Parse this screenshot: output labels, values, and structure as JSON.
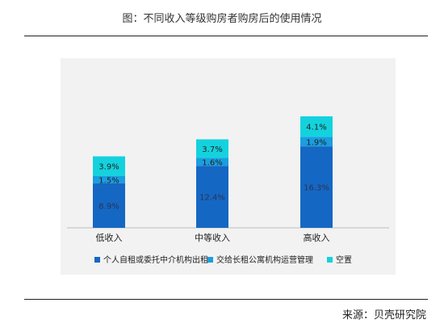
{
  "header": {
    "title": "图：不同收入等级购房者购房后的使用情况"
  },
  "footer": {
    "source": "来源：贝壳研究院"
  },
  "colors": {
    "series1": "#1567c4",
    "series2": "#1a9ee0",
    "series3": "#13d2de",
    "panel": "#f2f2f2",
    "label_dark": "#2a3550"
  },
  "chart_data": {
    "type": "bar",
    "stacked": true,
    "title": "图：不同收入等级购房者购房后的使用情况",
    "categories": [
      "低收入",
      "中等收入",
      "高收入"
    ],
    "series": [
      {
        "name": "个人自租或委托中介机构出租",
        "values": [
          8.9,
          12.4,
          16.3
        ],
        "labels": [
          "8.9%",
          "12.4%",
          "16.3%"
        ]
      },
      {
        "name": "交给长租公寓机构运营管理",
        "values": [
          1.5,
          1.6,
          1.9
        ],
        "labels": [
          "1.5%",
          "1.6%",
          "1.9%"
        ]
      },
      {
        "name": "空置",
        "values": [
          3.9,
          3.7,
          4.1
        ],
        "labels": [
          "3.9%",
          "3.7%",
          "4.1%"
        ]
      }
    ],
    "ylim": [
      0,
      22.3
    ],
    "grid": false,
    "legend_position": "bottom",
    "xlabel": "",
    "ylabel": ""
  }
}
